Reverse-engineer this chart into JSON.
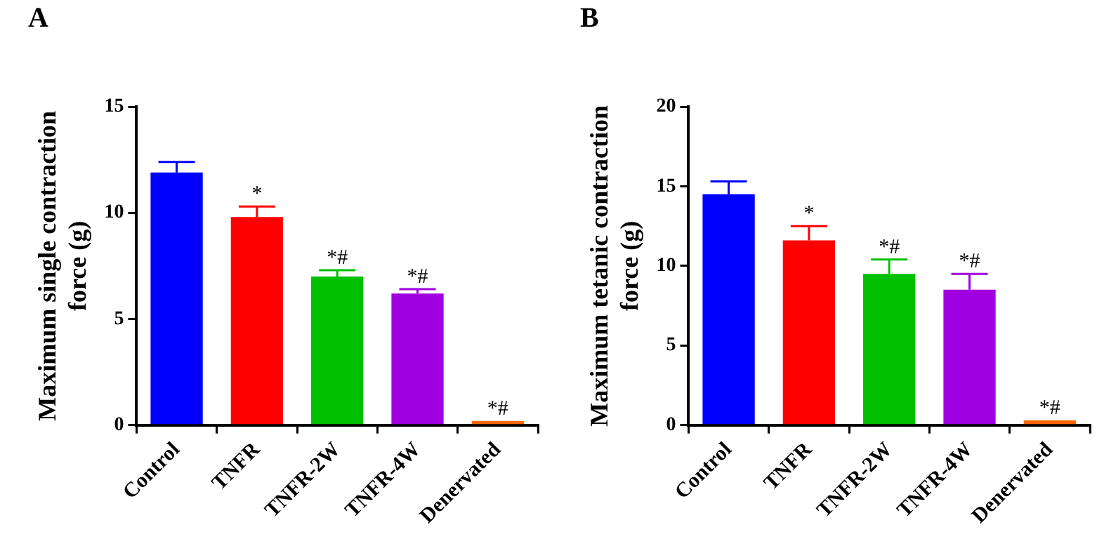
{
  "chart_data": [
    {
      "type": "bar",
      "title": "A",
      "ylabel": "Maximum single contraction\nforce (g)",
      "categories": [
        "Control",
        "TNFR",
        "TNFR-2W",
        "TNFR-4W",
        "Denervated"
      ],
      "values": [
        11.9,
        9.8,
        7.0,
        6.2,
        0.2
      ],
      "errors": [
        [
          11.9,
          12.4
        ],
        [
          9.8,
          10.3
        ],
        [
          7.0,
          7.3
        ],
        [
          6.2,
          6.4
        ],
        null
      ],
      "colors": [
        "#0000ff",
        "#ff0000",
        "#00c000",
        "#a000e0",
        "#ff6600"
      ],
      "ylim": [
        0,
        15
      ],
      "yticks": [
        0,
        5,
        10,
        15
      ],
      "grid": false,
      "legend": false,
      "annotations": [
        {
          "text": "*",
          "x": "TNFR",
          "y": 9.8
        },
        {
          "text": "*#",
          "x": "TNFR-2W",
          "y": 7.0
        },
        {
          "text": "*#",
          "x": "TNFR-4W",
          "y": 6.2
        },
        {
          "text": "*#",
          "x": "Denervated",
          "y": 0.2
        }
      ]
    },
    {
      "type": "bar",
      "title": "B",
      "ylabel": "Maximum tetanic contraction\nforce (g)",
      "categories": [
        "Control",
        "TNFR",
        "TNFR-2W",
        "TNFR-4W",
        "Denervated"
      ],
      "values": [
        14.5,
        11.6,
        9.5,
        8.5,
        0.3
      ],
      "errors": [
        [
          14.5,
          15.3
        ],
        [
          11.6,
          12.5
        ],
        [
          9.5,
          10.4
        ],
        [
          8.5,
          9.5
        ],
        null
      ],
      "colors": [
        "#0000ff",
        "#ff0000",
        "#00c000",
        "#a000e0",
        "#ff6600"
      ],
      "ylim": [
        0,
        20
      ],
      "yticks": [
        0,
        5,
        10,
        15,
        20
      ],
      "grid": false,
      "legend": false,
      "annotations": [
        {
          "text": "*",
          "x": "TNFR",
          "y": 11.6
        },
        {
          "text": "*#",
          "x": "TNFR-2W",
          "y": 9.5
        },
        {
          "text": "*#",
          "x": "TNFR-4W",
          "y": 8.5
        },
        {
          "text": "*#",
          "x": "Denervated",
          "y": 0.3
        }
      ]
    }
  ]
}
